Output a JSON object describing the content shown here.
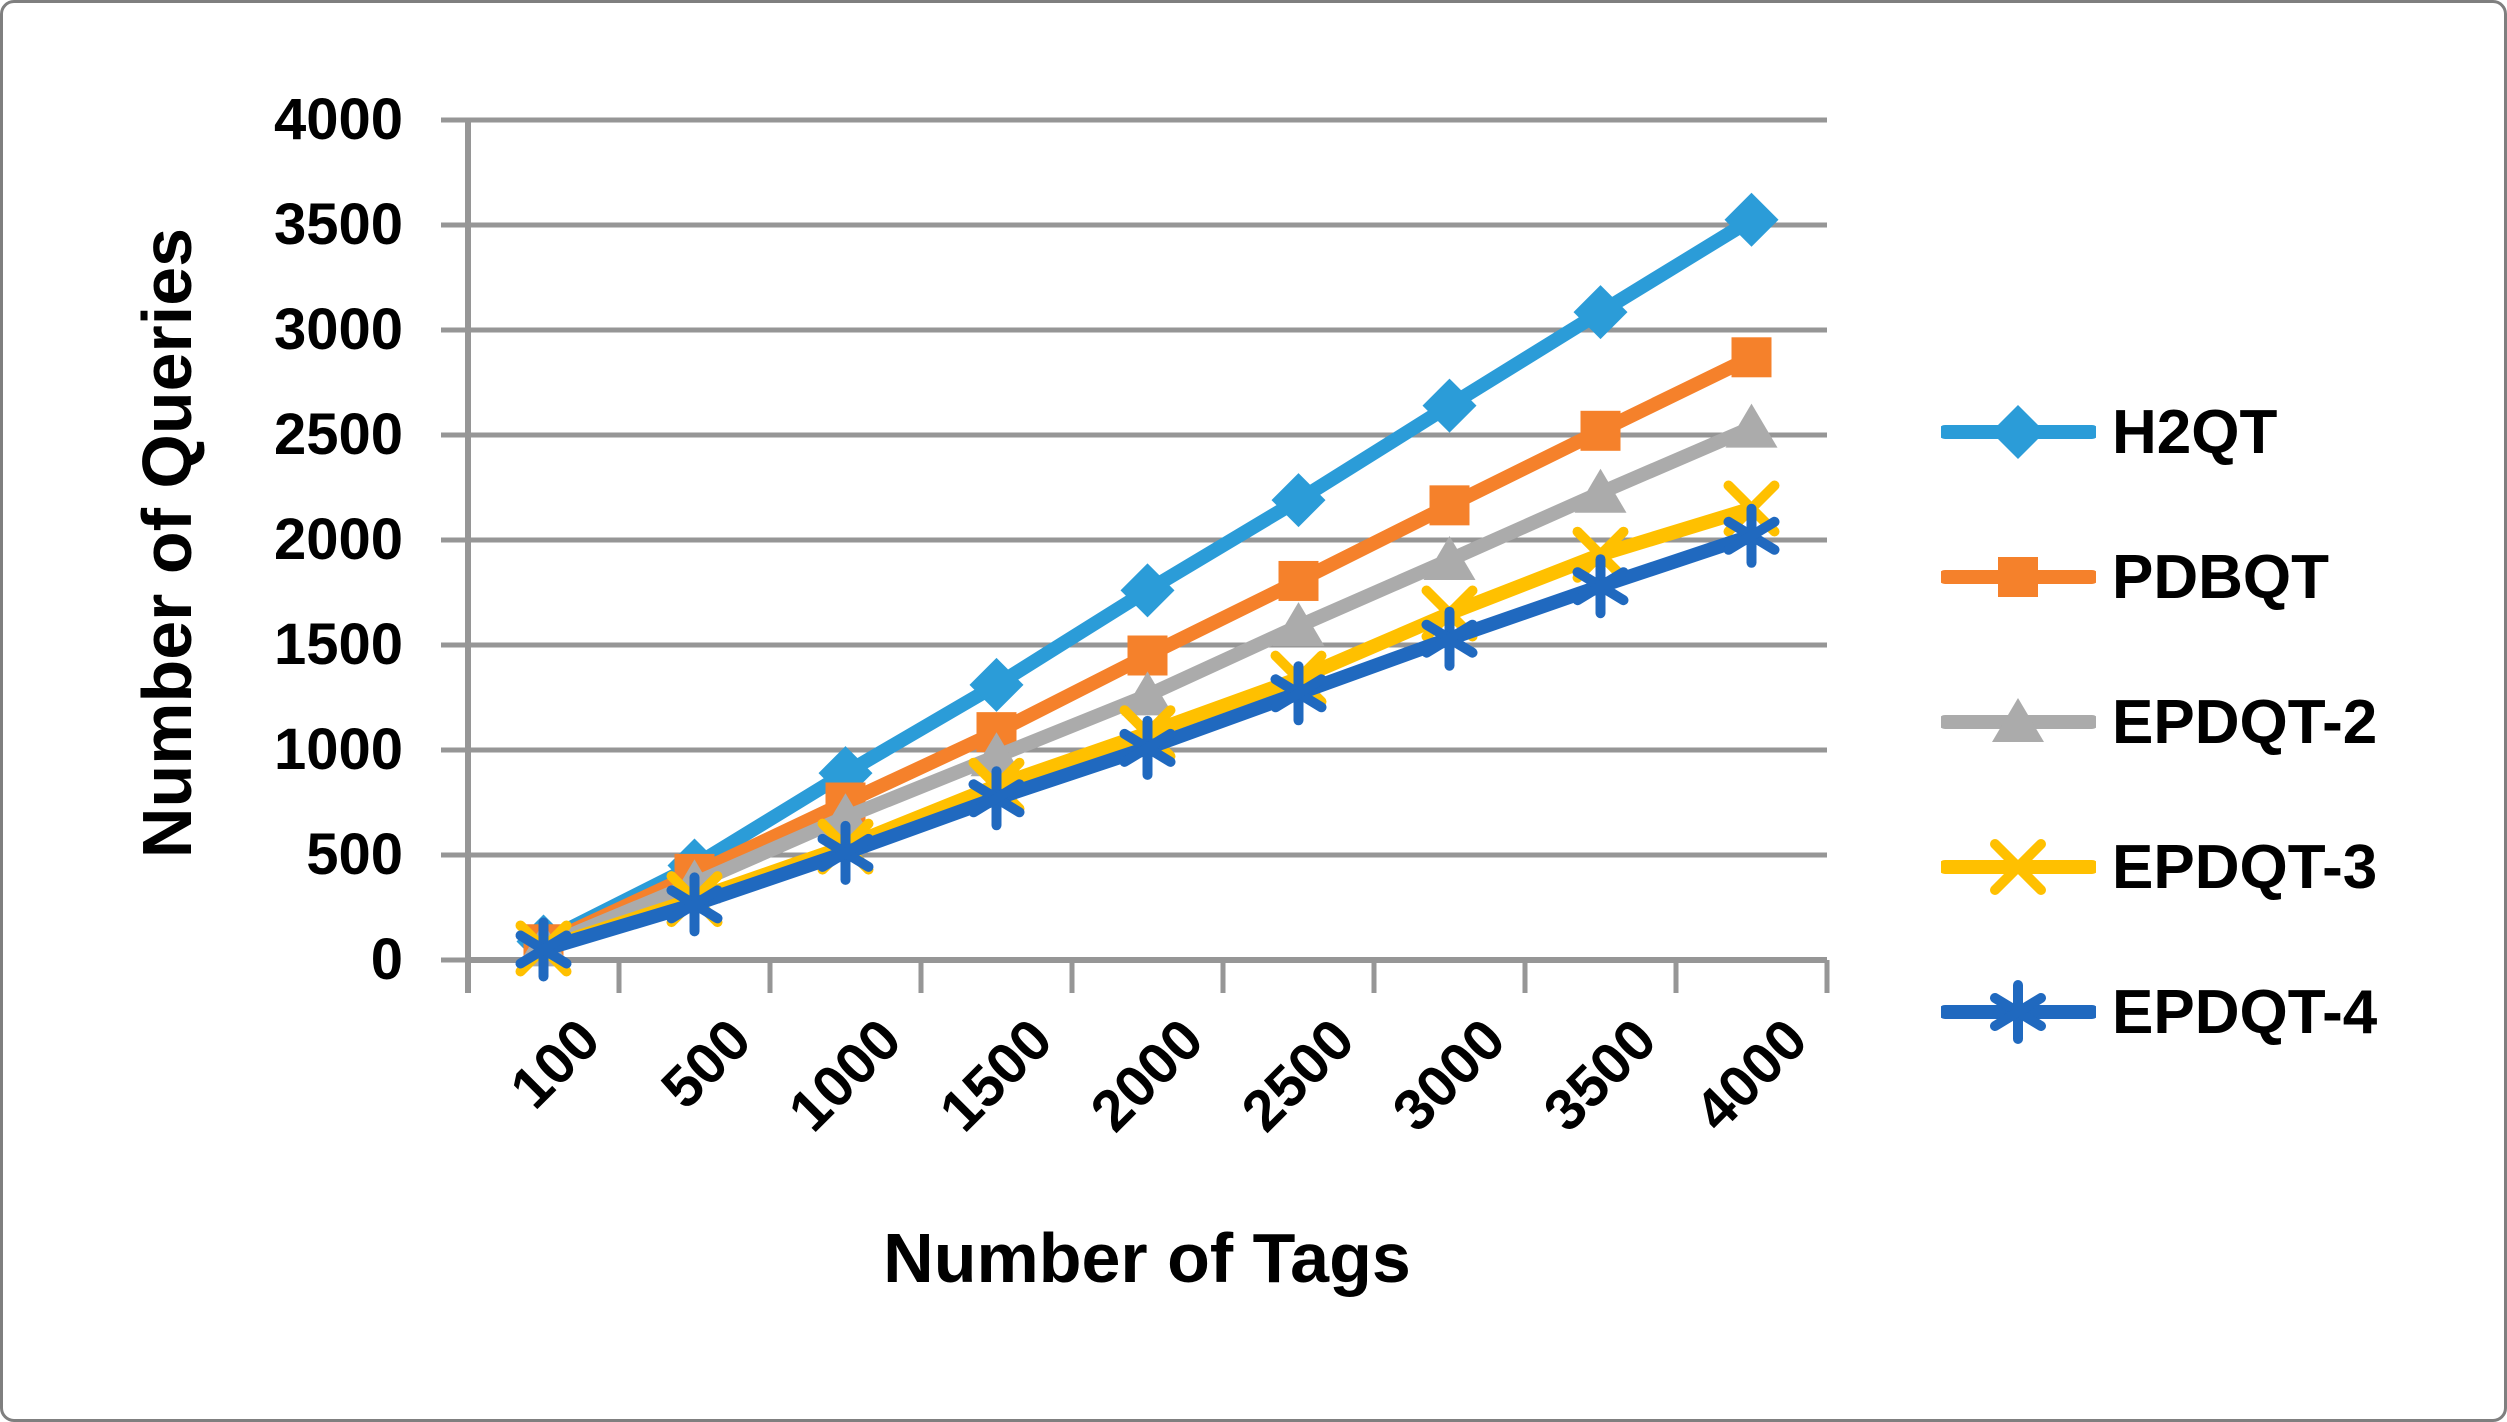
{
  "chart_data": {
    "type": "line",
    "title": "",
    "xlabel": "Number of Tags",
    "ylabel": "Number of Queries",
    "categories": [
      "100",
      "500",
      "1000",
      "1500",
      "2000",
      "2500",
      "3000",
      "3500",
      "4000"
    ],
    "y_ticks": [
      0,
      500,
      1000,
      1500,
      2000,
      2500,
      3000,
      3500,
      4000
    ],
    "ylim": [
      0,
      4000
    ],
    "grid": "horizontal",
    "legend_position": "right",
    "gridline_color": "#969696",
    "axis_color": "#969696",
    "series": [
      {
        "name": "H2QT",
        "color": "#2B9CD8",
        "marker": "diamond",
        "values": [
          88,
          450,
          890,
          1310,
          1760,
          2190,
          2640,
          3085,
          3525
        ]
      },
      {
        "name": "PDBQT",
        "color": "#F5812B",
        "marker": "square",
        "values": [
          75,
          410,
          750,
          1085,
          1450,
          1805,
          2165,
          2520,
          2870
        ]
      },
      {
        "name": "EPDQT-2",
        "color": "#ABABAB",
        "marker": "triangle",
        "values": [
          65,
          365,
          680,
          970,
          1260,
          1590,
          1905,
          2225,
          2535
        ]
      },
      {
        "name": "EPDQT-3",
        "color": "#FFC000",
        "marker": "x",
        "values": [
          55,
          290,
          540,
          830,
          1080,
          1340,
          1650,
          1930,
          2150
        ]
      },
      {
        "name": "EPDQT-4",
        "color": "#2069BF",
        "marker": "asterisk",
        "values": [
          50,
          265,
          510,
          770,
          1010,
          1270,
          1530,
          1780,
          2020
        ]
      }
    ]
  }
}
